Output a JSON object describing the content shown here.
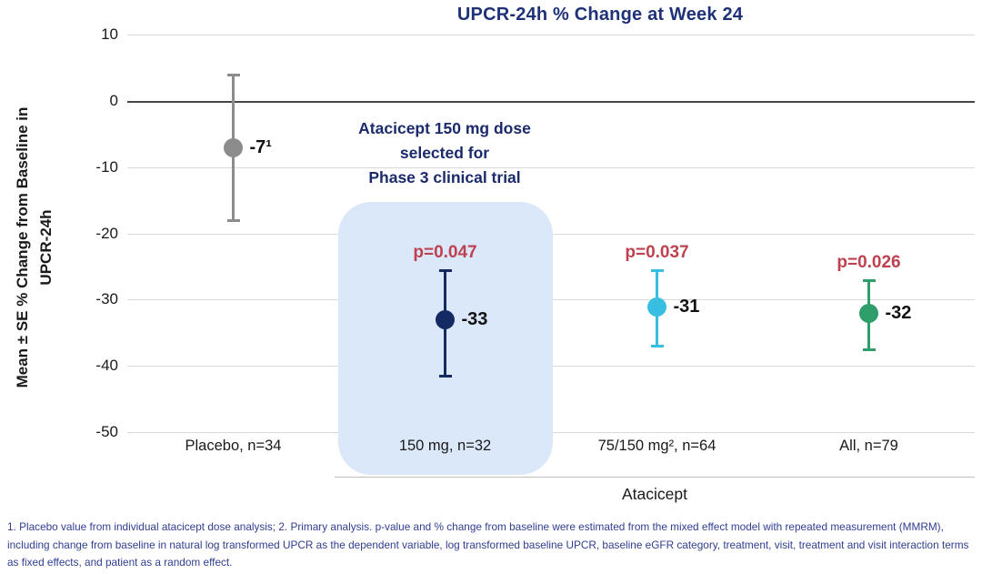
{
  "title": "UPCR-24h % Change at Week 24",
  "y_axis": {
    "label_line1": "Mean ± SE % Change from Baseline in",
    "label_line2": "UPCR-24h",
    "ticks": [
      {
        "label": "10",
        "value": 10
      },
      {
        "label": "0",
        "value": 0
      },
      {
        "label": "-10",
        "value": -10
      },
      {
        "label": "-20",
        "value": -20
      },
      {
        "label": "-30",
        "value": -30
      },
      {
        "label": "-40",
        "value": -40
      },
      {
        "label": "-50",
        "value": -50
      }
    ]
  },
  "annotation": {
    "lines": [
      "Atacicept 150 mg dose",
      "selected for",
      "Phase 3 clinical trial"
    ]
  },
  "group_axis": {
    "label": "Atacicept"
  },
  "footnote": "1. Placebo value from individual atacicept dose analysis; 2. Primary analysis. p-value and % change from baseline were estimated from the mixed effect model with repeated measurement (MMRM), including change from baseline in natural log transformed UPCR as the dependent variable, log transformed baseline UPCR, baseline eGFR category, treatment, visit, treatment and visit interaction terms as fixed effects, and patient as a random effect.",
  "colors": {
    "title_navy": "#1F3278",
    "annotation_navy": "#1B2A6B",
    "footnote_blue": "#303E90",
    "p_value_red": "#BE4150",
    "highlight_fill": "#DBE8FA",
    "placebo_gray": "#8C8C8C",
    "dose150_navy": "#152A62",
    "dose75150_cyan": "#38BEE1",
    "all_green": "#2E9E6B"
  },
  "chart_data": {
    "type": "scatter",
    "subtype": "point-with-error-bars",
    "title": "UPCR-24h % Change at Week 24",
    "xlabel": "Atacicept",
    "ylabel": "Mean ± SE % Change from Baseline in UPCR-24h",
    "ylim": [
      -55,
      12
    ],
    "grid": true,
    "categories": [
      "Placebo, n=34",
      "150 mg, n=32",
      "75/150 mg², n=64",
      "All, n=79"
    ],
    "series": [
      {
        "category": "Placebo, n=34",
        "value": -7,
        "value_label": "-7¹",
        "upper": 4,
        "lower": -18,
        "p_label": "",
        "color": "#8C8C8C"
      },
      {
        "category": "150 mg, n=32",
        "value": -33,
        "value_label": "-33",
        "upper": -25.5,
        "lower": -41.5,
        "p_label": "p=0.047",
        "color": "#152A62"
      },
      {
        "category": "75/150 mg², n=64",
        "value": -31,
        "value_label": "-31",
        "upper": -25.5,
        "lower": -37,
        "p_label": "p=0.037",
        "color": "#38BEE1"
      },
      {
        "category": "All, n=79",
        "value": -32,
        "value_label": "-32",
        "upper": -27,
        "lower": -37.5,
        "p_label": "p=0.026",
        "color": "#2E9E6B"
      }
    ]
  }
}
